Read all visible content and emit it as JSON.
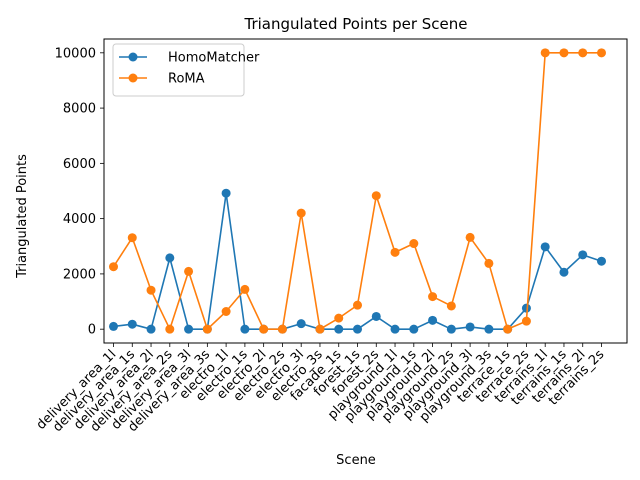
{
  "chart_data": {
    "type": "line",
    "title": "Triangulated Points per Scene",
    "xlabel": "Scene",
    "ylabel": "Triangulated Points",
    "ylim": [
      -500,
      10500
    ],
    "yticks": [
      0,
      2000,
      4000,
      6000,
      8000,
      10000
    ],
    "grid": false,
    "legend_position": "top-left",
    "categories": [
      "delivery_area_1l",
      "delivery_area_1s",
      "delivery_area_2l",
      "delivery_area_2s",
      "delivery_area_3l",
      "delivery_area_3s",
      "electro_1l",
      "electro_1s",
      "electro_2l",
      "electro_2s",
      "electro_3l",
      "electro_3s",
      "facade_1s",
      "forest_1s",
      "forest_2s",
      "playground_1l",
      "playground_1s",
      "playground_2l",
      "playground_2s",
      "playground_3l",
      "playground_3s",
      "terrace_1s",
      "terrace_2s",
      "terrains_1l",
      "terrains_1s",
      "terrains_2l",
      "terrains_2s"
    ],
    "series": [
      {
        "name": "HomoMatcher",
        "color": "#1f77b4",
        "values": [
          100,
          180,
          0,
          2580,
          0,
          0,
          4920,
          0,
          0,
          0,
          200,
          0,
          0,
          0,
          460,
          0,
          0,
          320,
          0,
          80,
          0,
          0,
          760,
          2980,
          2060,
          2690,
          2460
        ]
      },
      {
        "name": "RoMA",
        "color": "#ff7f0e",
        "values": [
          2260,
          3310,
          1410,
          0,
          2090,
          0,
          640,
          1440,
          0,
          0,
          4200,
          0,
          400,
          870,
          4830,
          2780,
          3100,
          1180,
          840,
          3320,
          2380,
          0,
          290,
          10000,
          10000,
          10000,
          10000
        ]
      }
    ]
  }
}
